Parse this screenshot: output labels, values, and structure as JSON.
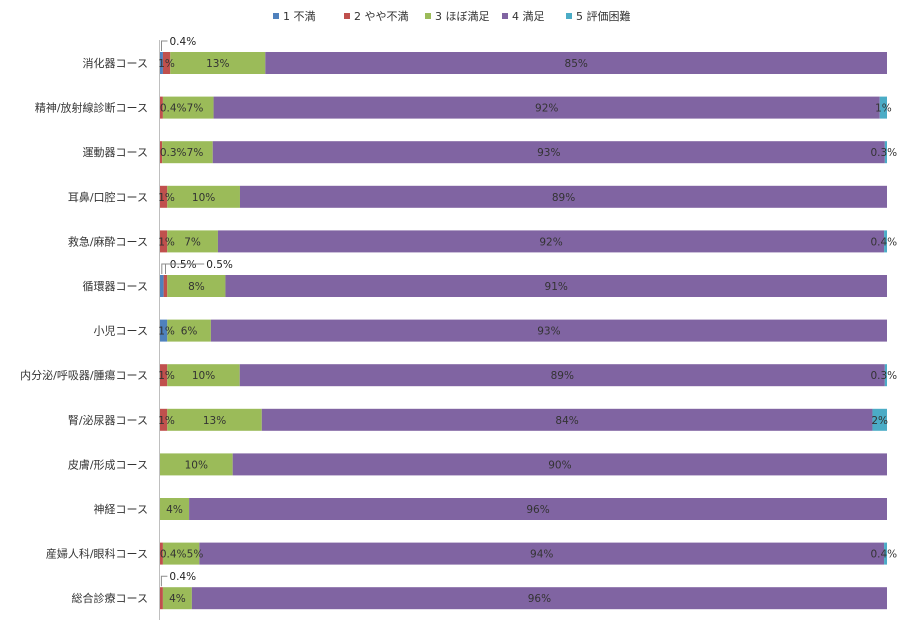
{
  "chart_data": {
    "type": "bar",
    "orientation": "horizontal",
    "stacked": "percent",
    "legend_position": "top",
    "grid": false,
    "categories": [
      "消化器コース",
      "精神/放射線診断コース",
      "運動器コース",
      "耳鼻/口腔コース",
      "救急/麻酔コース",
      "循環器コース",
      "小児コース",
      "内分泌/呼吸器/腫瘍コース",
      "腎/泌尿器コース",
      "皮膚/形成コース",
      "神経コース",
      "産婦人科/眼科コース",
      "総合診療コース"
    ],
    "series": [
      {
        "name": "1 不満",
        "color": "#4f81bd",
        "values": [
          0.4,
          0,
          0,
          0,
          0,
          0.5,
          1,
          0,
          0,
          0,
          0,
          0,
          0
        ],
        "labels": [
          "0.4%",
          "",
          "",
          "",
          "",
          "0.5%",
          "1%",
          "",
          "",
          "",
          "",
          "",
          ""
        ]
      },
      {
        "name": "2 やや不満",
        "color": "#c0504d",
        "values": [
          1,
          0.4,
          0.3,
          1,
          1,
          0.5,
          0,
          1,
          1,
          0,
          0,
          0.4,
          0.4
        ],
        "labels": [
          "1%",
          "0.4%",
          "0.3%",
          "1%",
          "1%",
          "0.5%",
          "",
          "1%",
          "1%",
          "",
          "",
          "0.4%",
          "0.4%"
        ]
      },
      {
        "name": "3 ほぼ満足",
        "color": "#9bbb59",
        "values": [
          13,
          7,
          7,
          10,
          7,
          8,
          6,
          10,
          13,
          10,
          4,
          5,
          4
        ],
        "labels": [
          "13%",
          "7%",
          "7%",
          "10%",
          "7%",
          "8%",
          "6%",
          "10%",
          "13%",
          "10%",
          "4%",
          "5%",
          "4%"
        ]
      },
      {
        "name": "4 満足",
        "color": "#8064a2",
        "values": [
          85,
          92,
          93,
          89,
          92,
          91,
          93,
          89,
          84,
          90,
          96,
          94,
          96
        ],
        "labels": [
          "85%",
          "92%",
          "93%",
          "89%",
          "92%",
          "91%",
          "93%",
          "89%",
          "84%",
          "90%",
          "96%",
          "94%",
          "96%"
        ]
      },
      {
        "name": "5 評価困難",
        "color": "#4bacc6",
        "values": [
          0,
          1,
          0.3,
          0,
          0.4,
          0,
          0,
          0.3,
          2,
          0,
          0,
          0.4,
          0
        ],
        "labels": [
          "",
          "1%",
          "0.3%",
          "",
          "0.4%",
          "",
          "",
          "0.3%",
          "2%",
          "",
          "",
          "0.4%",
          ""
        ]
      }
    ],
    "callouts": [
      {
        "row": 0,
        "series": 0,
        "text": "0.4%"
      },
      {
        "row": 5,
        "series": 0,
        "text": "0.5%"
      },
      {
        "row": 5,
        "series": 1,
        "text": "0.5%"
      },
      {
        "row": 12,
        "series": 1,
        "text": "0.4%"
      }
    ]
  }
}
